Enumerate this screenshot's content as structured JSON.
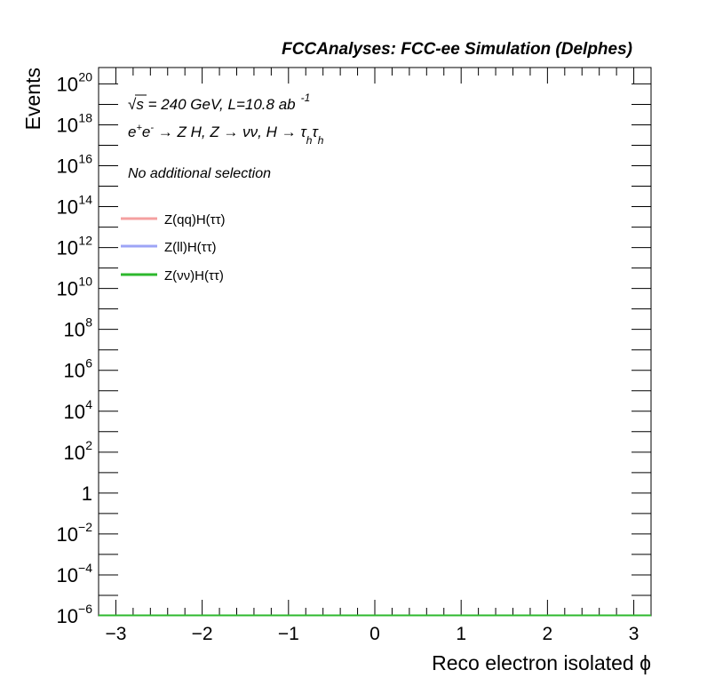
{
  "header": {
    "title": "FCCAnalyses: FCC-ee Simulation (Delphes)"
  },
  "annotations": {
    "line1": {
      "sqrt": "√s",
      "text": " = 240 GeV, L=10.8 ab",
      "sup": "-1"
    },
    "line2": {
      "e1": "e",
      "e1sup": "+",
      "e2": "e",
      "e2sup": "-",
      "rest1": " → Z H, Z  → νν, H → τ",
      "tau1sub": "h",
      "tau2": "τ",
      "tau2sub": "h"
    },
    "line3": "No additional selection"
  },
  "chart_data": {
    "type": "line",
    "xlabel": "Reco electron isolated ϕ",
    "ylabel": "Events",
    "xlim": [
      -3.2,
      3.2
    ],
    "ylim_log10": [
      -6,
      20.8
    ],
    "log_y": true,
    "grid": false,
    "legend_position": "top-left",
    "x_ticks": [
      -3,
      -2,
      -1,
      0,
      1,
      2,
      3
    ],
    "x_tick_labels": [
      "−3",
      "−2",
      "−1",
      "0",
      "1",
      "2",
      "3"
    ],
    "y_ticks": [
      {
        "exp": 20,
        "base": "10",
        "sup": "20"
      },
      {
        "exp": 18,
        "base": "10",
        "sup": "18"
      },
      {
        "exp": 16,
        "base": "10",
        "sup": "16"
      },
      {
        "exp": 14,
        "base": "10",
        "sup": "14"
      },
      {
        "exp": 12,
        "base": "10",
        "sup": "12"
      },
      {
        "exp": 10,
        "base": "10",
        "sup": "10"
      },
      {
        "exp": 8,
        "base": "10",
        "sup": "8"
      },
      {
        "exp": 6,
        "base": "10",
        "sup": "6"
      },
      {
        "exp": 4,
        "base": "10",
        "sup": "4"
      },
      {
        "exp": 2,
        "base": "10",
        "sup": "2"
      },
      {
        "exp": 0,
        "base": "1",
        "sup": ""
      },
      {
        "exp": -2,
        "base": "10",
        "sup": "−2"
      },
      {
        "exp": -4,
        "base": "10",
        "sup": "−4"
      },
      {
        "exp": -6,
        "base": "10",
        "sup": "−6"
      }
    ],
    "series": [
      {
        "name": "Z(qq)H(ττ)",
        "color": "#f5a0a0",
        "x": [
          -3.2,
          3.2
        ],
        "y": [
          0,
          0
        ]
      },
      {
        "name": "Z(ll)H(ττ)",
        "color": "#9da4f6",
        "x": [
          -3.2,
          3.2
        ],
        "y": [
          0,
          0
        ]
      },
      {
        "name": "Z(νν)H(ττ)",
        "color": "#2db82d",
        "x": [
          -3.2,
          3.2
        ],
        "y": [
          0,
          0
        ]
      }
    ]
  }
}
